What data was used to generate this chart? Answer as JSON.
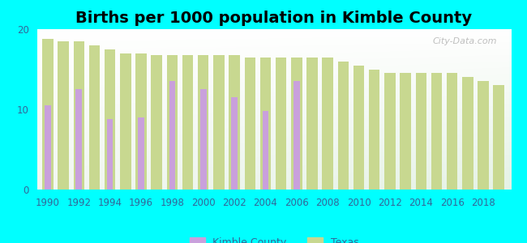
{
  "title": "Births per 1000 population in Kimble County",
  "background_color": "#00FFFF",
  "plot_bg_top": "#ffffff",
  "plot_bg_bottom": "#d0ead0",
  "years": [
    1990,
    1991,
    1992,
    1993,
    1994,
    1995,
    1996,
    1997,
    1998,
    1999,
    2000,
    2001,
    2002,
    2003,
    2004,
    2005,
    2006,
    2007,
    2008,
    2009,
    2010,
    2011,
    2012,
    2013,
    2014,
    2015,
    2016,
    2017,
    2018,
    2019
  ],
  "kimble": [
    10.5,
    null,
    12.5,
    null,
    8.8,
    null,
    9.0,
    null,
    13.5,
    null,
    12.5,
    null,
    11.5,
    null,
    9.8,
    null,
    13.5,
    null,
    null,
    null,
    null,
    null,
    null,
    null,
    null,
    null,
    null,
    null,
    null,
    null
  ],
  "texas": [
    18.8,
    18.5,
    18.5,
    18.0,
    17.5,
    17.0,
    17.0,
    16.8,
    16.8,
    16.8,
    16.8,
    16.8,
    16.8,
    16.5,
    16.5,
    16.5,
    16.5,
    16.5,
    16.5,
    16.0,
    15.5,
    15.0,
    14.5,
    14.5,
    14.5,
    14.5,
    14.5,
    14.0,
    13.5,
    13.0
  ],
  "kimble_color": "#c9a0dc",
  "texas_color": "#c8d890",
  "ylim": [
    0,
    20
  ],
  "yticks": [
    0,
    10,
    20
  ],
  "texas_bar_width": 0.7,
  "kimble_bar_width": 0.4,
  "title_fontsize": 14,
  "label_color": "#336699",
  "watermark": "City-Data.com"
}
